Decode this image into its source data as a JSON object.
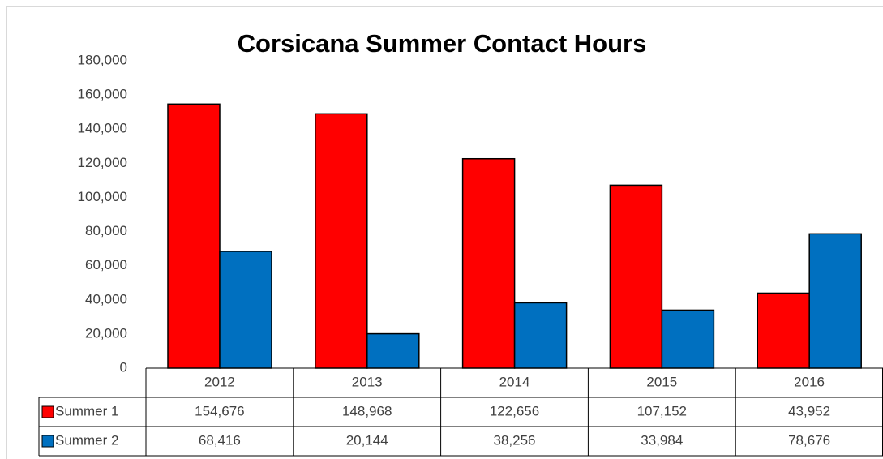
{
  "chart_data": {
    "type": "bar",
    "title": "Corsicana Summer Contact Hours",
    "categories": [
      "2012",
      "2013",
      "2014",
      "2015",
      "2016"
    ],
    "series": [
      {
        "name": "Summer 1",
        "color": "#ff0000",
        "values": [
          154676,
          148968,
          122656,
          107152,
          43952
        ],
        "value_labels": [
          "154,676",
          "148,968",
          "122,656",
          "107,152",
          "43,952"
        ]
      },
      {
        "name": "Summer 2",
        "color": "#0070c0",
        "values": [
          68416,
          20144,
          38256,
          33984,
          78676
        ],
        "value_labels": [
          "68,416",
          "20,144",
          "38,256",
          "33,984",
          "78,676"
        ]
      }
    ],
    "ylim": [
      0,
      180000
    ],
    "yticks": [
      0,
      {
        "value": 20000,
        "label": "20,000"
      },
      {
        "value": 40000,
        "label": "40,000"
      },
      {
        "value": 60000,
        "label": "60,000"
      },
      {
        "value": 80000,
        "label": "80,000"
      },
      {
        "value": 100000,
        "label": "100,000"
      },
      {
        "value": 120000,
        "label": "120,000"
      },
      {
        "value": 140000,
        "label": "140,000"
      },
      {
        "value": 160000,
        "label": "160,000"
      },
      {
        "value": 180000,
        "label": "180,000"
      }
    ],
    "grid": false,
    "data_table": true
  }
}
